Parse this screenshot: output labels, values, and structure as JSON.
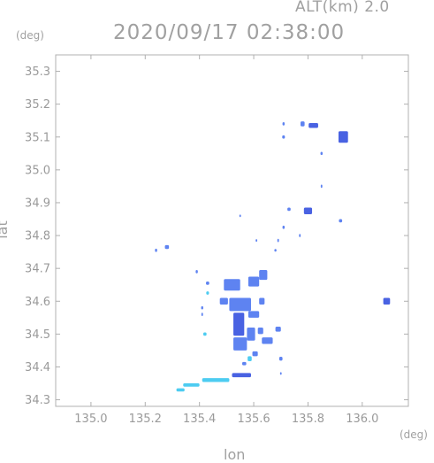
{
  "header": {
    "altitude_label": "ALT(km) 2.0",
    "timestamp": "2020/09/17 02:38:00"
  },
  "axes": {
    "y_unit": "(deg)",
    "x_unit": "(deg)",
    "xlabel": "lon",
    "ylabel": "lat"
  },
  "colors": {
    "frame": "#b0b0b0",
    "low_echo": "#3ec8f0",
    "mid_echo": "#5078f0",
    "strong_echo": "#3a55e0"
  },
  "chart_data": {
    "type": "heatmap",
    "title": "2020/09/17 02:38:00",
    "xlabel": "lon",
    "ylabel": "lat",
    "xlim": [
      134.87,
      136.17
    ],
    "ylim": [
      34.28,
      35.35
    ],
    "xticks": [
      135.0,
      135.2,
      135.4,
      135.6,
      135.8,
      136.0
    ],
    "xtick_labels": [
      "135.0",
      "135.2",
      "135.4",
      "135.6",
      "135.8",
      "136.0"
    ],
    "yticks": [
      34.3,
      34.4,
      34.5,
      34.6,
      34.7,
      34.8,
      34.9,
      35.0,
      35.1,
      35.2,
      35.3
    ],
    "ytick_labels": [
      "34.3",
      "34.4",
      "34.5",
      "34.6",
      "34.7",
      "34.8",
      "34.9",
      "35.0",
      "35.1",
      "35.2",
      "35.3"
    ],
    "grid": false,
    "echo_cells": [
      {
        "lon": 135.93,
        "lat": 35.1,
        "w": 0.035,
        "h": 0.035,
        "level": "strong"
      },
      {
        "lon": 135.82,
        "lat": 35.135,
        "w": 0.035,
        "h": 0.015,
        "level": "strong"
      },
      {
        "lon": 135.78,
        "lat": 35.14,
        "w": 0.015,
        "h": 0.015,
        "level": "mid"
      },
      {
        "lon": 135.71,
        "lat": 35.14,
        "w": 0.008,
        "h": 0.01,
        "level": "mid"
      },
      {
        "lon": 135.71,
        "lat": 35.1,
        "w": 0.01,
        "h": 0.01,
        "level": "mid"
      },
      {
        "lon": 135.85,
        "lat": 35.05,
        "w": 0.008,
        "h": 0.01,
        "level": "mid"
      },
      {
        "lon": 135.85,
        "lat": 34.95,
        "w": 0.006,
        "h": 0.01,
        "level": "mid"
      },
      {
        "lon": 135.8,
        "lat": 34.875,
        "w": 0.03,
        "h": 0.02,
        "level": "strong"
      },
      {
        "lon": 135.73,
        "lat": 34.88,
        "w": 0.012,
        "h": 0.01,
        "level": "mid"
      },
      {
        "lon": 135.92,
        "lat": 34.845,
        "w": 0.012,
        "h": 0.01,
        "level": "mid"
      },
      {
        "lon": 135.71,
        "lat": 34.825,
        "w": 0.008,
        "h": 0.01,
        "level": "mid"
      },
      {
        "lon": 135.69,
        "lat": 34.785,
        "w": 0.006,
        "h": 0.01,
        "level": "mid"
      },
      {
        "lon": 135.68,
        "lat": 34.755,
        "w": 0.008,
        "h": 0.008,
        "level": "mid"
      },
      {
        "lon": 135.77,
        "lat": 34.8,
        "w": 0.006,
        "h": 0.01,
        "level": "mid"
      },
      {
        "lon": 135.55,
        "lat": 34.86,
        "w": 0.006,
        "h": 0.008,
        "level": "mid"
      },
      {
        "lon": 135.61,
        "lat": 34.785,
        "w": 0.006,
        "h": 0.008,
        "level": "mid"
      },
      {
        "lon": 135.28,
        "lat": 34.765,
        "w": 0.015,
        "h": 0.012,
        "level": "mid"
      },
      {
        "lon": 135.24,
        "lat": 34.755,
        "w": 0.008,
        "h": 0.01,
        "level": "mid"
      },
      {
        "lon": 135.39,
        "lat": 34.69,
        "w": 0.008,
        "h": 0.01,
        "level": "mid"
      },
      {
        "lon": 136.09,
        "lat": 34.6,
        "w": 0.025,
        "h": 0.02,
        "level": "strong"
      },
      {
        "lon": 135.43,
        "lat": 34.655,
        "w": 0.012,
        "h": 0.01,
        "level": "mid"
      },
      {
        "lon": 135.43,
        "lat": 34.625,
        "w": 0.01,
        "h": 0.01,
        "level": "low"
      },
      {
        "lon": 135.41,
        "lat": 34.58,
        "w": 0.008,
        "h": 0.01,
        "level": "mid"
      },
      {
        "lon": 135.41,
        "lat": 34.56,
        "w": 0.006,
        "h": 0.01,
        "level": "mid"
      },
      {
        "lon": 135.42,
        "lat": 34.5,
        "w": 0.012,
        "h": 0.01,
        "level": "low"
      },
      {
        "lon": 135.52,
        "lat": 34.65,
        "w": 0.06,
        "h": 0.035,
        "level": "mid"
      },
      {
        "lon": 135.6,
        "lat": 34.66,
        "w": 0.04,
        "h": 0.03,
        "level": "mid"
      },
      {
        "lon": 135.635,
        "lat": 34.68,
        "w": 0.03,
        "h": 0.03,
        "level": "mid"
      },
      {
        "lon": 135.49,
        "lat": 34.6,
        "w": 0.03,
        "h": 0.02,
        "level": "mid"
      },
      {
        "lon": 135.55,
        "lat": 34.59,
        "w": 0.08,
        "h": 0.04,
        "level": "mid"
      },
      {
        "lon": 135.6,
        "lat": 34.56,
        "w": 0.04,
        "h": 0.02,
        "level": "mid"
      },
      {
        "lon": 135.63,
        "lat": 34.6,
        "w": 0.02,
        "h": 0.02,
        "level": "mid"
      },
      {
        "lon": 135.545,
        "lat": 34.53,
        "w": 0.04,
        "h": 0.07,
        "level": "strong"
      },
      {
        "lon": 135.55,
        "lat": 34.47,
        "w": 0.05,
        "h": 0.04,
        "level": "mid"
      },
      {
        "lon": 135.59,
        "lat": 34.5,
        "w": 0.03,
        "h": 0.04,
        "level": "mid"
      },
      {
        "lon": 135.625,
        "lat": 34.51,
        "w": 0.02,
        "h": 0.02,
        "level": "mid"
      },
      {
        "lon": 135.65,
        "lat": 34.48,
        "w": 0.04,
        "h": 0.02,
        "level": "mid"
      },
      {
        "lon": 135.69,
        "lat": 34.515,
        "w": 0.02,
        "h": 0.015,
        "level": "mid"
      },
      {
        "lon": 135.605,
        "lat": 34.44,
        "w": 0.02,
        "h": 0.015,
        "level": "mid"
      },
      {
        "lon": 135.565,
        "lat": 34.41,
        "w": 0.015,
        "h": 0.01,
        "level": "mid"
      },
      {
        "lon": 135.585,
        "lat": 34.425,
        "w": 0.015,
        "h": 0.015,
        "level": "low"
      },
      {
        "lon": 135.7,
        "lat": 34.425,
        "w": 0.012,
        "h": 0.012,
        "level": "mid"
      },
      {
        "lon": 135.7,
        "lat": 34.38,
        "w": 0.006,
        "h": 0.008,
        "level": "mid"
      },
      {
        "lon": 135.555,
        "lat": 34.375,
        "w": 0.07,
        "h": 0.013,
        "level": "strong"
      },
      {
        "lon": 135.46,
        "lat": 34.36,
        "w": 0.1,
        "h": 0.012,
        "level": "low"
      },
      {
        "lon": 135.37,
        "lat": 34.345,
        "w": 0.06,
        "h": 0.01,
        "level": "low"
      },
      {
        "lon": 135.33,
        "lat": 34.33,
        "w": 0.03,
        "h": 0.01,
        "level": "low"
      }
    ]
  }
}
